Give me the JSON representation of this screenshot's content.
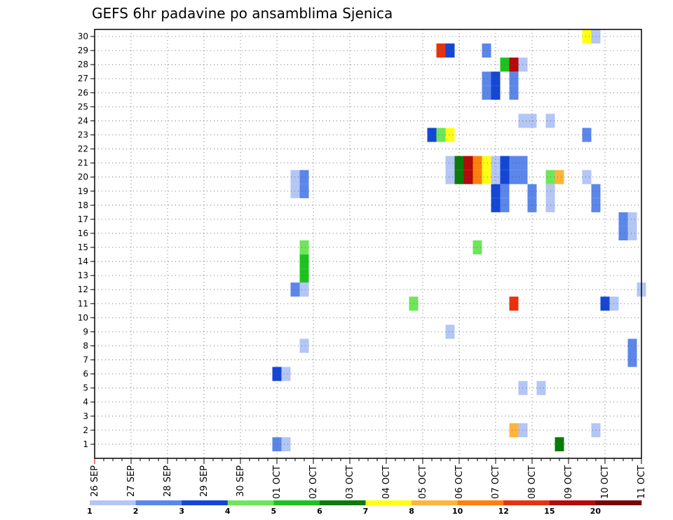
{
  "chart_data": {
    "type": "heatmap",
    "title": "GEFS 6hr padavine po ansamblima Sjenica",
    "xlabel": "",
    "ylabel": "",
    "x_ticks": [
      "26 SEP",
      "27 SEP",
      "28 SEP",
      "29 SEP",
      "30 SEP",
      "01 OCT",
      "02 OCT",
      "03 OCT",
      "04 OCT",
      "05 OCT",
      "06 OCT",
      "07 OCT",
      "08 OCT",
      "09 OCT",
      "10 OCT",
      "11 OCT"
    ],
    "y_ticks": [
      1,
      2,
      3,
      4,
      5,
      6,
      7,
      8,
      9,
      10,
      11,
      12,
      13,
      14,
      15,
      16,
      17,
      18,
      19,
      20,
      21,
      22,
      23,
      24,
      25,
      26,
      27,
      28,
      29,
      30
    ],
    "x_unit": "6-hour step since 26 SEP",
    "ylim": [
      1,
      30
    ],
    "grid": true,
    "colorbar": {
      "labels": [
        "1",
        "2",
        "3",
        "4",
        "5",
        "6",
        "7",
        "8",
        "10",
        "12",
        "15",
        "20"
      ],
      "colors": [
        "#b3c6f5",
        "#5b86ea",
        "#1446d6",
        "#6ee65a",
        "#1ec21e",
        "#0a7a0a",
        "#ffff14",
        "#ffb43c",
        "#ff7f0e",
        "#e6320f",
        "#b40a0a",
        "#780505"
      ]
    },
    "cells": [
      {
        "member": 1,
        "step": 20,
        "color": "#5b86ea"
      },
      {
        "member": 1,
        "step": 21,
        "color": "#b3c6f5"
      },
      {
        "member": 1,
        "step": 51,
        "color": "#0a7a0a"
      },
      {
        "member": 2,
        "step": 46,
        "color": "#ffb43c"
      },
      {
        "member": 2,
        "step": 47,
        "color": "#b3c6f5"
      },
      {
        "member": 2,
        "step": 55,
        "color": "#b3c6f5"
      },
      {
        "member": 5,
        "step": 47,
        "color": "#b3c6f5"
      },
      {
        "member": 5,
        "step": 49,
        "color": "#b3c6f5"
      },
      {
        "member": 6,
        "step": 20,
        "color": "#1446d6"
      },
      {
        "member": 6,
        "step": 21,
        "color": "#b3c6f5"
      },
      {
        "member": 7,
        "step": 59,
        "color": "#5b86ea"
      },
      {
        "member": 8,
        "step": 23,
        "color": "#b3c6f5"
      },
      {
        "member": 8,
        "step": 59,
        "color": "#5b86ea"
      },
      {
        "member": 9,
        "step": 39,
        "color": "#b3c6f5"
      },
      {
        "member": 11,
        "step": 35,
        "color": "#6ee65a"
      },
      {
        "member": 11,
        "step": 46,
        "color": "#e6320f"
      },
      {
        "member": 11,
        "step": 56,
        "color": "#1446d6"
      },
      {
        "member": 11,
        "step": 57,
        "color": "#b3c6f5"
      },
      {
        "member": 12,
        "step": 22,
        "color": "#5b86ea"
      },
      {
        "member": 12,
        "step": 23,
        "color": "#b3c6f5"
      },
      {
        "member": 12,
        "step": 60,
        "color": "#b3c6f5"
      },
      {
        "member": 13,
        "step": 23,
        "color": "#1ec21e"
      },
      {
        "member": 14,
        "step": 23,
        "color": "#1ec21e"
      },
      {
        "member": 15,
        "step": 23,
        "color": "#6ee65a"
      },
      {
        "member": 15,
        "step": 42,
        "color": "#6ee65a"
      },
      {
        "member": 16,
        "step": 58,
        "color": "#5b86ea"
      },
      {
        "member": 16,
        "step": 59,
        "color": "#b3c6f5"
      },
      {
        "member": 17,
        "step": 58,
        "color": "#5b86ea"
      },
      {
        "member": 17,
        "step": 59,
        "color": "#b3c6f5"
      },
      {
        "member": 18,
        "step": 44,
        "color": "#1446d6"
      },
      {
        "member": 18,
        "step": 45,
        "color": "#5b86ea"
      },
      {
        "member": 18,
        "step": 48,
        "color": "#5b86ea"
      },
      {
        "member": 18,
        "step": 50,
        "color": "#b3c6f5"
      },
      {
        "member": 18,
        "step": 55,
        "color": "#5b86ea"
      },
      {
        "member": 19,
        "step": 22,
        "color": "#b3c6f5"
      },
      {
        "member": 19,
        "step": 23,
        "color": "#5b86ea"
      },
      {
        "member": 19,
        "step": 44,
        "color": "#1446d6"
      },
      {
        "member": 19,
        "step": 45,
        "color": "#5b86ea"
      },
      {
        "member": 19,
        "step": 48,
        "color": "#5b86ea"
      },
      {
        "member": 19,
        "step": 50,
        "color": "#b3c6f5"
      },
      {
        "member": 19,
        "step": 55,
        "color": "#5b86ea"
      },
      {
        "member": 20,
        "step": 22,
        "color": "#b3c6f5"
      },
      {
        "member": 20,
        "step": 23,
        "color": "#5b86ea"
      },
      {
        "member": 20,
        "step": 39,
        "color": "#b3c6f5"
      },
      {
        "member": 20,
        "step": 40,
        "color": "#0a7a0a"
      },
      {
        "member": 20,
        "step": 41,
        "color": "#b40a0a"
      },
      {
        "member": 20,
        "step": 42,
        "color": "#ff7f0e"
      },
      {
        "member": 20,
        "step": 43,
        "color": "#ffff14"
      },
      {
        "member": 20,
        "step": 44,
        "color": "#b3c6f5"
      },
      {
        "member": 20,
        "step": 45,
        "color": "#1446d6"
      },
      {
        "member": 20,
        "step": 46,
        "color": "#5b86ea"
      },
      {
        "member": 20,
        "step": 47,
        "color": "#5b86ea"
      },
      {
        "member": 20,
        "step": 50,
        "color": "#6ee65a"
      },
      {
        "member": 20,
        "step": 51,
        "color": "#ffb43c"
      },
      {
        "member": 20,
        "step": 54,
        "color": "#b3c6f5"
      },
      {
        "member": 21,
        "step": 39,
        "color": "#b3c6f5"
      },
      {
        "member": 21,
        "step": 40,
        "color": "#0a7a0a"
      },
      {
        "member": 21,
        "step": 41,
        "color": "#b40a0a"
      },
      {
        "member": 21,
        "step": 42,
        "color": "#ff7f0e"
      },
      {
        "member": 21,
        "step": 43,
        "color": "#ffff14"
      },
      {
        "member": 21,
        "step": 44,
        "color": "#b3c6f5"
      },
      {
        "member": 21,
        "step": 45,
        "color": "#1446d6"
      },
      {
        "member": 21,
        "step": 46,
        "color": "#5b86ea"
      },
      {
        "member": 21,
        "step": 47,
        "color": "#5b86ea"
      },
      {
        "member": 23,
        "step": 37,
        "color": "#1446d6"
      },
      {
        "member": 23,
        "step": 38,
        "color": "#6ee65a"
      },
      {
        "member": 23,
        "step": 39,
        "color": "#ffff14"
      },
      {
        "member": 23,
        "step": 54,
        "color": "#5b86ea"
      },
      {
        "member": 24,
        "step": 47,
        "color": "#b3c6f5"
      },
      {
        "member": 24,
        "step": 48,
        "color": "#b3c6f5"
      },
      {
        "member": 24,
        "step": 50,
        "color": "#b3c6f5"
      },
      {
        "member": 26,
        "step": 43,
        "color": "#5b86ea"
      },
      {
        "member": 26,
        "step": 44,
        "color": "#1446d6"
      },
      {
        "member": 26,
        "step": 46,
        "color": "#5b86ea"
      },
      {
        "member": 27,
        "step": 43,
        "color": "#5b86ea"
      },
      {
        "member": 27,
        "step": 44,
        "color": "#1446d6"
      },
      {
        "member": 27,
        "step": 46,
        "color": "#5b86ea"
      },
      {
        "member": 28,
        "step": 45,
        "color": "#1ec21e"
      },
      {
        "member": 28,
        "step": 46,
        "color": "#b40a0a"
      },
      {
        "member": 28,
        "step": 47,
        "color": "#b3c6f5"
      },
      {
        "member": 29,
        "step": 38,
        "color": "#e6320f"
      },
      {
        "member": 29,
        "step": 39,
        "color": "#1446d6"
      },
      {
        "member": 29,
        "step": 43,
        "color": "#5b86ea"
      },
      {
        "member": 30,
        "step": 54,
        "color": "#ffff14"
      },
      {
        "member": 30,
        "step": 55,
        "color": "#b3c6f5"
      }
    ]
  }
}
